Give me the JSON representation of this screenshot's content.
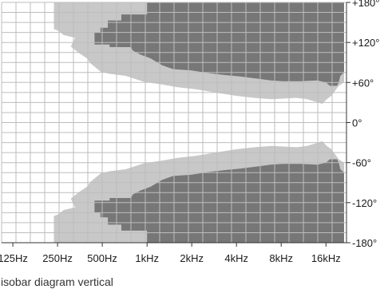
{
  "caption": "isobar diagram vertical",
  "colors": {
    "background": "#ffffff",
    "grid": "#bdbdbd",
    "outer_band": "#c8c8c8",
    "inner_band": "#777777",
    "axis": "#333333",
    "text": "#1a1a1a"
  },
  "chart_data": {
    "type": "isobar",
    "title": "",
    "xlabel": "",
    "ylabel": "",
    "x_scale": "log",
    "xlim": [
      105,
      22000
    ],
    "ylim": [
      -180,
      180
    ],
    "x_ticks": [
      {
        "value": 125,
        "label": "125Hz"
      },
      {
        "value": 250,
        "label": "250Hz"
      },
      {
        "value": 500,
        "label": "500Hz"
      },
      {
        "value": 1000,
        "label": "1kHz"
      },
      {
        "value": 2000,
        "label": "2kHz"
      },
      {
        "value": 4000,
        "label": "4kHz"
      },
      {
        "value": 8000,
        "label": "8kHz"
      },
      {
        "value": 16000,
        "label": "16kHz"
      }
    ],
    "y_ticks": [
      {
        "value": 180,
        "label": "+180°"
      },
      {
        "value": 120,
        "label": "+120°"
      },
      {
        "value": 60,
        "label": "+60°"
      },
      {
        "value": 0,
        "label": "0°"
      },
      {
        "value": -60,
        "label": "-60°"
      },
      {
        "value": -120,
        "label": "-120°"
      },
      {
        "value": -180,
        "label": "-180°"
      }
    ],
    "grid": true,
    "bands": [
      {
        "level": "outer",
        "color": "#c8c8c8",
        "polygons": [
          [
            [
              236,
              180
            ],
            [
              236,
              163
            ],
            [
              236,
              143
            ],
            [
              236,
              140
            ],
            [
              255,
              137
            ],
            [
              275,
              131
            ],
            [
              328,
              127
            ],
            [
              307,
              114
            ],
            [
              349,
              104
            ],
            [
              395,
              96
            ],
            [
              415,
              89
            ],
            [
              489,
              76
            ],
            [
              560,
              73
            ],
            [
              717,
              70
            ],
            [
              955,
              61
            ],
            [
              1256,
              57
            ],
            [
              1602,
              53
            ],
            [
              2115,
              50
            ],
            [
              2868,
              45
            ],
            [
              4019,
              40
            ],
            [
              5312,
              37
            ],
            [
              6894,
              35
            ],
            [
              10113,
              37
            ],
            [
              11970,
              35
            ],
            [
              14166,
              30
            ],
            [
              15100,
              28
            ],
            [
              16200,
              35
            ],
            [
              17400,
              40
            ],
            [
              18500,
              48
            ],
            [
              19500,
              55
            ],
            [
              21200,
              60
            ],
            [
              21200,
              180
            ]
          ],
          [
            [
              236,
              -180
            ],
            [
              236,
              -163
            ],
            [
              236,
              -143
            ],
            [
              236,
              -140
            ],
            [
              255,
              -137
            ],
            [
              275,
              -131
            ],
            [
              328,
              -127
            ],
            [
              307,
              -114
            ],
            [
              349,
              -104
            ],
            [
              395,
              -96
            ],
            [
              415,
              -89
            ],
            [
              489,
              -76
            ],
            [
              560,
              -73
            ],
            [
              717,
              -70
            ],
            [
              955,
              -61
            ],
            [
              1256,
              -57
            ],
            [
              1602,
              -53
            ],
            [
              2115,
              -50
            ],
            [
              2868,
              -45
            ],
            [
              4019,
              -40
            ],
            [
              5312,
              -37
            ],
            [
              6894,
              -35
            ],
            [
              10113,
              -37
            ],
            [
              11970,
              -35
            ],
            [
              14166,
              -30
            ],
            [
              15100,
              -28
            ],
            [
              16200,
              -35
            ],
            [
              17400,
              -40
            ],
            [
              18500,
              -48
            ],
            [
              19500,
              -55
            ],
            [
              21200,
              -60
            ],
            [
              21200,
              -180
            ]
          ]
        ]
      },
      {
        "level": "inner",
        "color": "#777777",
        "polygons": [
          [
            [
              1000,
              180
            ],
            [
              1000,
              162
            ],
            [
              672,
              162
            ],
            [
              672,
              153
            ],
            [
              545,
              153
            ],
            [
              545,
              142
            ],
            [
              486,
              142
            ],
            [
              486,
              135
            ],
            [
              443,
              135
            ],
            [
              443,
              117
            ],
            [
              560,
              117
            ],
            [
              560,
              113
            ],
            [
              780,
              113
            ],
            [
              800,
              108
            ],
            [
              900,
              102
            ],
            [
              1060,
              96
            ],
            [
              1260,
              86
            ],
            [
              1500,
              80
            ],
            [
              2000,
              78
            ],
            [
              2600,
              74
            ],
            [
              3400,
              71
            ],
            [
              4200,
              69
            ],
            [
              5400,
              66
            ],
            [
              6800,
              63
            ],
            [
              8200,
              62
            ],
            [
              11000,
              62
            ],
            [
              14000,
              63
            ],
            [
              16000,
              60
            ],
            [
              17000,
              55
            ],
            [
              19000,
              55
            ],
            [
              19500,
              60
            ],
            [
              20000,
              70
            ],
            [
              21200,
              75
            ],
            [
              21200,
              180
            ]
          ],
          [
            [
              1000,
              -180
            ],
            [
              1000,
              -162
            ],
            [
              672,
              -162
            ],
            [
              672,
              -153
            ],
            [
              545,
              -153
            ],
            [
              545,
              -142
            ],
            [
              486,
              -142
            ],
            [
              486,
              -135
            ],
            [
              443,
              -135
            ],
            [
              443,
              -117
            ],
            [
              560,
              -117
            ],
            [
              560,
              -113
            ],
            [
              780,
              -113
            ],
            [
              800,
              -108
            ],
            [
              900,
              -102
            ],
            [
              1060,
              -96
            ],
            [
              1260,
              -86
            ],
            [
              1500,
              -80
            ],
            [
              2000,
              -78
            ],
            [
              2600,
              -74
            ],
            [
              3400,
              -71
            ],
            [
              4200,
              -69
            ],
            [
              5400,
              -66
            ],
            [
              6800,
              -63
            ],
            [
              8200,
              -62
            ],
            [
              11000,
              -62
            ],
            [
              14000,
              -63
            ],
            [
              16000,
              -60
            ],
            [
              17000,
              -55
            ],
            [
              19000,
              -55
            ],
            [
              19500,
              -60
            ],
            [
              20000,
              -70
            ],
            [
              21200,
              -75
            ],
            [
              21200,
              -180
            ]
          ]
        ]
      }
    ]
  }
}
